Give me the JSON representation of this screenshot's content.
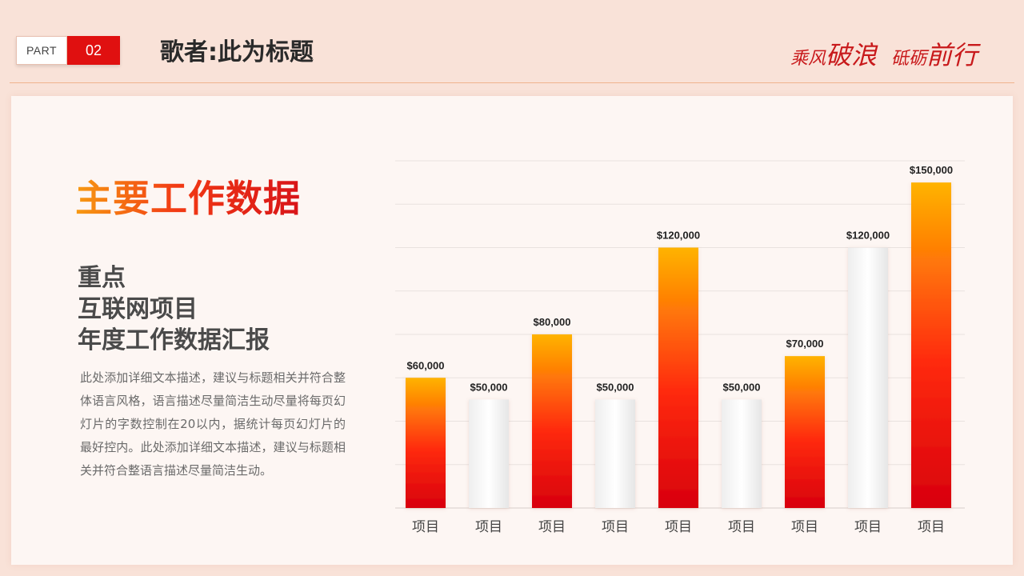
{
  "header": {
    "part_label": "PART",
    "part_number": "02",
    "title": "歌者:此为标题",
    "slogan": {
      "a_small": "乘风",
      "a_large": "破浪",
      "b_small": "砥砺",
      "b_large": "前行"
    }
  },
  "colors": {
    "accent": "#e01010",
    "bar_hot_top": "#ffb300",
    "bar_hot_bottom": "#d80010",
    "bar_white": "#f2f2f2"
  },
  "content": {
    "main_heading": "主要工作数据",
    "sub_lines": [
      "重点",
      "互联网项目",
      "年度工作数据汇报"
    ],
    "description": "此处添加详细文本描述，建议与标题相关并符合整体语言风格，语言描述尽量简洁生动尽量将每页幻灯片的字数控制在20以内，据统计每页幻灯片的最好控内。此处添加详细文本描述，建议与标题相关并符合整语言描述尽量简洁生动。"
  },
  "chart_data": {
    "type": "bar",
    "categories": [
      "项目",
      "项目",
      "项目",
      "项目",
      "项目",
      "项目",
      "项目",
      "项目",
      "项目"
    ],
    "values": [
      60000,
      50000,
      80000,
      50000,
      120000,
      50000,
      70000,
      120000,
      150000
    ],
    "value_labels": [
      "$60,000",
      "$50,000",
      "$80,000",
      "$50,000",
      "$120,000",
      "$50,000",
      "$70,000",
      "$120,000",
      "$150,000"
    ],
    "styles": [
      "hot",
      "white",
      "hot",
      "white",
      "hot",
      "white",
      "hot",
      "white",
      "hot"
    ],
    "ylim": [
      0,
      160000
    ],
    "gridlines": 8,
    "title": "",
    "xlabel": "",
    "ylabel": ""
  }
}
